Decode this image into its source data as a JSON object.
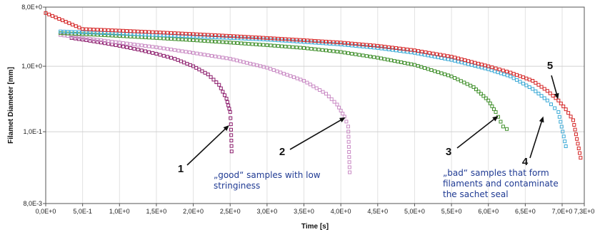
{
  "chart_data": {
    "type": "scatter",
    "title": "",
    "xlabel": "Time [s]",
    "ylabel": "Filamet Diameter [mm]",
    "xscale": "linear",
    "yscale": "log",
    "xlim": [
      0,
      7.3
    ],
    "ylim": [
      0.008,
      8
    ],
    "x_ticks": [
      {
        "value": 0.0,
        "label": "0,0E+0"
      },
      {
        "value": 0.5,
        "label": "5,0E-1"
      },
      {
        "value": 1.0,
        "label": "1,0E+0"
      },
      {
        "value": 1.5,
        "label": "1,5E+0"
      },
      {
        "value": 2.0,
        "label": "2,0E+0"
      },
      {
        "value": 2.5,
        "label": "2,5E+0"
      },
      {
        "value": 3.0,
        "label": "3,0E+0"
      },
      {
        "value": 3.5,
        "label": "3,5E+0"
      },
      {
        "value": 4.0,
        "label": "4,0E+0"
      },
      {
        "value": 4.5,
        "label": "4,5E+0"
      },
      {
        "value": 5.0,
        "label": "5,0E+0"
      },
      {
        "value": 5.5,
        "label": "5,5E+0"
      },
      {
        "value": 6.0,
        "label": "6,0E+0"
      },
      {
        "value": 6.5,
        "label": "6,5E+0"
      },
      {
        "value": 7.0,
        "label": "7,0E+0"
      },
      {
        "value": 7.3,
        "label": "7,3E+0"
      }
    ],
    "y_ticks": [
      {
        "value": 0.008,
        "label": "8,0E-3"
      },
      {
        "value": 0.1,
        "label": "1,0E-1"
      },
      {
        "value": 1.0,
        "label": "1,0E+0"
      },
      {
        "value": 8.0,
        "label": "8,0E+0"
      }
    ],
    "grid": true,
    "series": [
      {
        "id": "s1",
        "color": "#8b1a6b",
        "break_time": 2.5,
        "end_time": 2.52,
        "start_diameter": 3.2,
        "x": [
          0.35,
          0.5,
          0.75,
          1.0,
          1.25,
          1.5,
          1.75,
          2.0,
          2.2,
          2.35,
          2.45,
          2.5,
          2.51,
          2.52
        ],
        "y": [
          2.7,
          2.55,
          2.3,
          2.05,
          1.8,
          1.55,
          1.3,
          1.0,
          0.75,
          0.52,
          0.32,
          0.2,
          0.13,
          0.05
        ]
      },
      {
        "id": "s2",
        "color": "#c98ac4",
        "break_time": 4.08,
        "end_time": 4.12,
        "start_diameter": 3.2,
        "x": [
          0.2,
          0.5,
          1.0,
          1.5,
          2.0,
          2.5,
          3.0,
          3.5,
          3.8,
          3.95,
          4.05,
          4.1,
          4.12
        ],
        "y": [
          3.0,
          2.7,
          2.3,
          1.95,
          1.6,
          1.3,
          0.95,
          0.6,
          0.38,
          0.26,
          0.17,
          0.12,
          0.024
        ]
      },
      {
        "id": "s3",
        "color": "#3f8f2a",
        "break_time": 6.15,
        "end_time": 6.25,
        "start_diameter": 3.6,
        "x": [
          0.2,
          0.5,
          1.0,
          1.5,
          2.0,
          2.5,
          3.0,
          3.5,
          4.0,
          4.5,
          5.0,
          5.5,
          5.8,
          6.0,
          6.1,
          6.2,
          6.25
        ],
        "y": [
          3.2,
          3.1,
          2.9,
          2.7,
          2.5,
          2.3,
          2.1,
          1.9,
          1.65,
          1.35,
          1.05,
          0.7,
          0.48,
          0.3,
          0.2,
          0.12,
          0.11
        ]
      },
      {
        "id": "s4",
        "color": "#3aa9d6",
        "break_time": 7.0,
        "end_time": 7.1,
        "start_diameter": 4.0,
        "x": [
          0.2,
          0.5,
          1.0,
          1.5,
          2.0,
          2.5,
          3.0,
          3.5,
          4.0,
          4.5,
          5.0,
          5.5,
          6.0,
          6.3,
          6.6,
          6.8,
          6.95,
          7.05
        ],
        "y": [
          3.4,
          3.3,
          3.15,
          3.0,
          2.85,
          2.7,
          2.55,
          2.35,
          2.15,
          1.9,
          1.6,
          1.25,
          0.9,
          0.7,
          0.45,
          0.3,
          0.2,
          0.06
        ]
      },
      {
        "id": "s5",
        "color": "#d42323",
        "break_time": 7.2,
        "end_time": 7.25,
        "start_diameter": 4.5,
        "x": [
          0.0,
          0.5,
          1.0,
          1.5,
          2.0,
          2.5,
          3.0,
          3.5,
          4.0,
          4.5,
          5.0,
          5.5,
          6.0,
          6.3,
          6.6,
          6.8,
          6.95,
          7.05,
          7.15,
          7.25
        ],
        "y": [
          6.5,
          3.7,
          3.5,
          3.3,
          3.1,
          2.9,
          2.7,
          2.5,
          2.3,
          2.05,
          1.75,
          1.4,
          1.0,
          0.8,
          0.6,
          0.42,
          0.3,
          0.22,
          0.15,
          0.04
        ]
      }
    ],
    "annotations": [
      {
        "label": "1",
        "target_x": 2.5,
        "target_y": 0.13
      },
      {
        "label": "2",
        "target_x": 4.08,
        "target_y": 0.17
      },
      {
        "label": "3",
        "target_x": 6.15,
        "target_y": 0.18
      },
      {
        "label": "4",
        "target_x": 6.75,
        "target_y": 0.18
      },
      {
        "label": "5",
        "target_x": 6.95,
        "target_y": 0.3
      }
    ],
    "notes": [
      {
        "lines": [
          "„good“ samples with low",
          "stringiness"
        ]
      },
      {
        "lines": [
          "„bad“ samples that form",
          "filaments and contaminate",
          "the sachet seal"
        ]
      }
    ]
  }
}
